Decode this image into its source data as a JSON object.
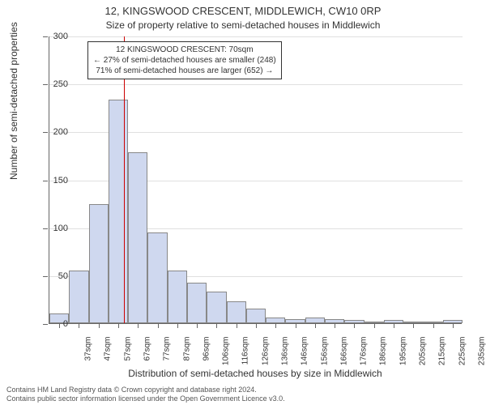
{
  "chart": {
    "type": "histogram",
    "title_main": "12, KINGSWOOD CRESCENT, MIDDLEWICH, CW10 0RP",
    "title_sub": "Size of property relative to semi-detached houses in Middlewich",
    "xlabel": "Distribution of semi-detached houses by size in Middlewich",
    "ylabel": "Number of semi-detached properties",
    "ylim": [
      0,
      300
    ],
    "ytick_step": 50,
    "yticks": [
      0,
      50,
      100,
      150,
      200,
      250,
      300
    ],
    "categories": [
      "37sqm",
      "47sqm",
      "57sqm",
      "67sqm",
      "77sqm",
      "87sqm",
      "96sqm",
      "106sqm",
      "116sqm",
      "126sqm",
      "136sqm",
      "146sqm",
      "156sqm",
      "166sqm",
      "176sqm",
      "186sqm",
      "195sqm",
      "205sqm",
      "215sqm",
      "225sqm",
      "235sqm"
    ],
    "values": [
      10,
      55,
      124,
      233,
      178,
      95,
      55,
      42,
      33,
      23,
      15,
      6,
      4,
      6,
      4,
      3,
      0,
      3,
      0,
      0,
      3
    ],
    "bar_fill": "#cfd8ef",
    "bar_border": "#888",
    "background_color": "#ffffff",
    "grid_color": "#e0e0e0",
    "axis_color": "#666",
    "marker_position_sqm": 70,
    "marker_color": "#cc0000",
    "annotation": {
      "line1": "12 KINGSWOOD CRESCENT: 70sqm",
      "line2": "← 27% of semi-detached houses are smaller (248)",
      "line3": "71% of semi-detached houses are larger (652) →"
    },
    "label_fontsize": 12,
    "title_fontsize": 13,
    "tick_fontsize": 11
  },
  "footer": {
    "line1": "Contains HM Land Registry data © Crown copyright and database right 2024.",
    "line2": "Contains public sector information licensed under the Open Government Licence v3.0."
  }
}
